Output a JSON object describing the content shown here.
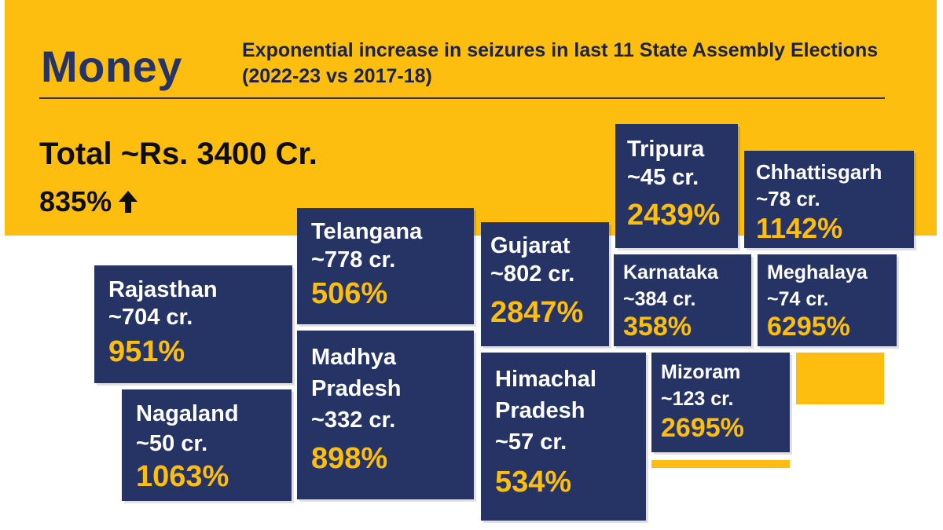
{
  "header": {
    "title": "Money",
    "subtitle": "Exponential increase in seizures in last 11 State Assembly Elections (2022-23 vs 2017-18)"
  },
  "summary": {
    "total": "Total ~Rs. 3400 Cr.",
    "growth": "835%",
    "growth_icon": "up-arrow-icon"
  },
  "states": {
    "rajasthan": {
      "name": "Rajasthan",
      "amount": "~704 cr.",
      "pct": "951%"
    },
    "nagaland": {
      "name": "Nagaland",
      "amount": "~50 cr.",
      "pct": "1063%"
    },
    "telangana": {
      "name": "Telangana",
      "amount": "~778 cr.",
      "pct": "506%"
    },
    "madhya_pradesh": {
      "name": "Madhya Pradesh",
      "amount": "~332 cr.",
      "pct": "898%"
    },
    "gujarat": {
      "name": "Gujarat",
      "amount": "~802 cr.",
      "pct": "2847%"
    },
    "himachal_pradesh": {
      "name": "Himachal Pradesh",
      "amount": "~57 cr.",
      "pct": "534%"
    },
    "tripura": {
      "name": "Tripura",
      "amount": "~45 cr.",
      "pct": "2439%"
    },
    "chhattisgarh": {
      "name": "Chhattisgarh",
      "amount": "~78 cr.",
      "pct": "1142%"
    },
    "karnataka": {
      "name": "Karnataka",
      "amount": "~384 cr.",
      "pct": "358%"
    },
    "meghalaya": {
      "name": "Meghalaya",
      "amount": "~74 cr.",
      "pct": "6295%"
    },
    "mizoram": {
      "name": "Mizoram",
      "amount": "~123 cr.",
      "pct": "2695%"
    }
  },
  "colors": {
    "accent_yellow": "#FDBE10",
    "card_navy": "#263465",
    "text_dark": "#1d2347"
  }
}
